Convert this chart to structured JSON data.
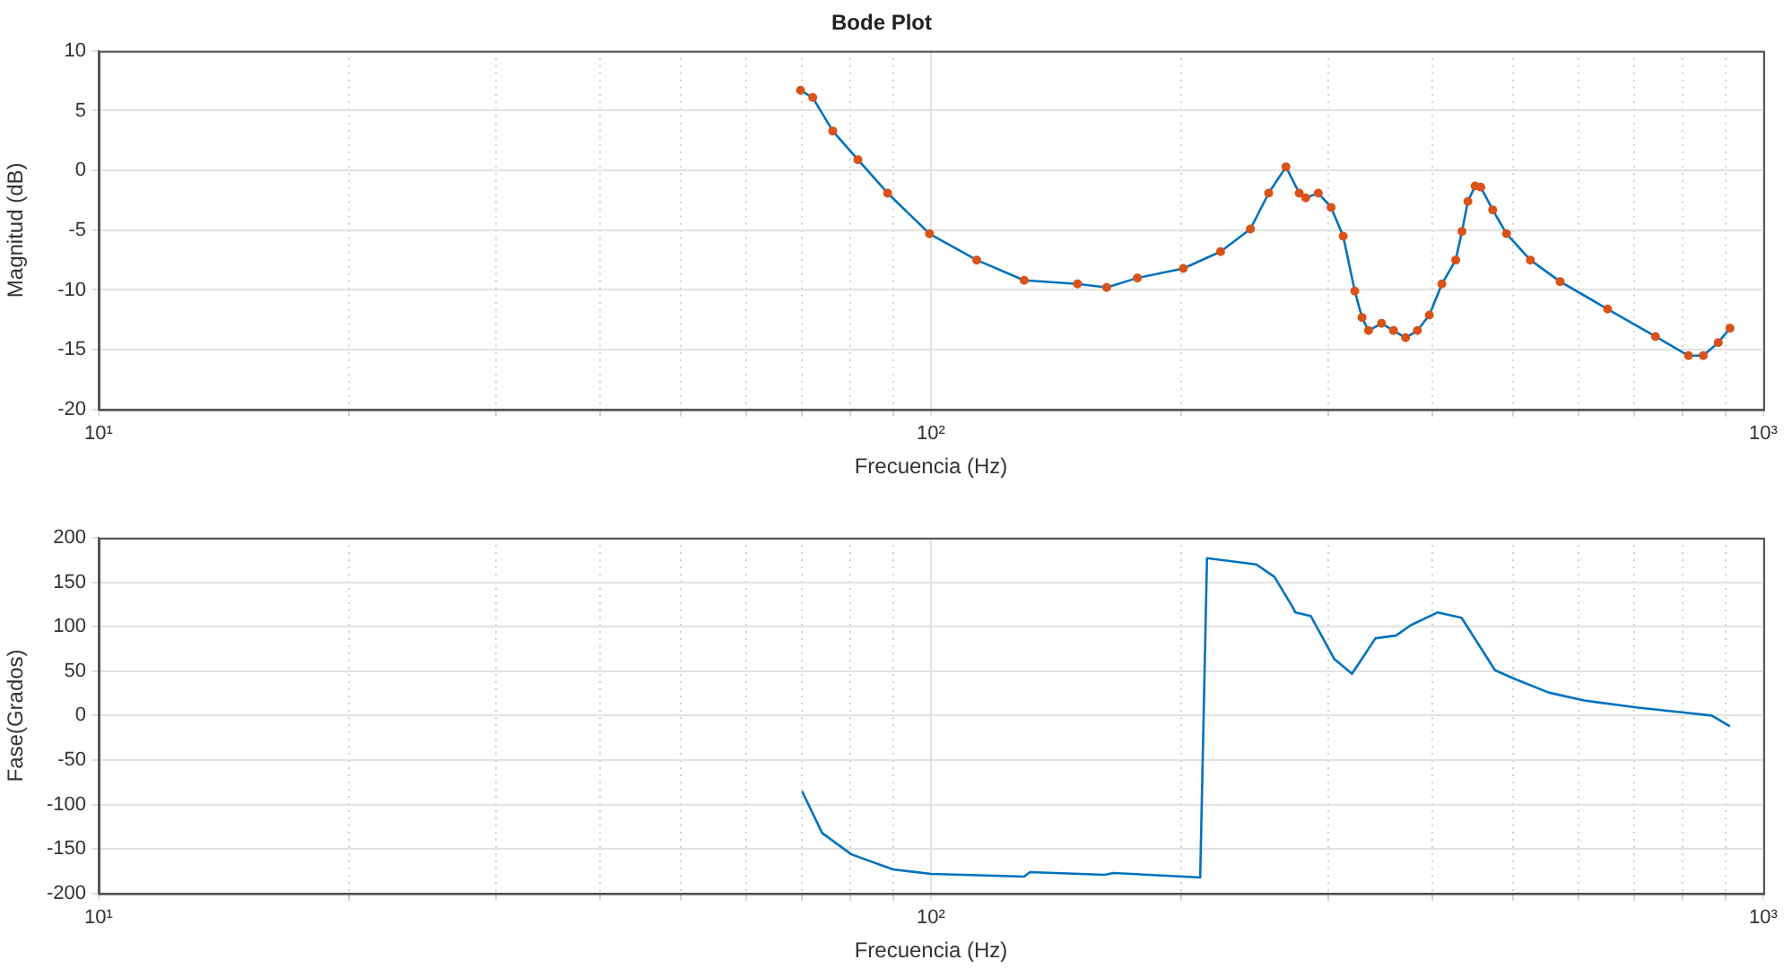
{
  "chart_data": [
    {
      "type": "line",
      "title": "Bode Plot",
      "xlabel": "Frecuencia (Hz)",
      "ylabel": "Magnitud (dB)",
      "log": "x",
      "grid": true,
      "xlim": [
        10,
        1000
      ],
      "xticks": [
        {
          "value": 10,
          "label": "10¹"
        },
        {
          "value": 20,
          "label": null
        },
        {
          "value": 30,
          "label": null
        },
        {
          "value": 40,
          "label": null
        },
        {
          "value": 50,
          "label": null
        },
        {
          "value": 60,
          "label": null
        },
        {
          "value": 70,
          "label": null
        },
        {
          "value": 80,
          "label": null
        },
        {
          "value": 90,
          "label": null
        },
        {
          "value": 100,
          "label": "10²"
        },
        {
          "value": 200,
          "label": null
        },
        {
          "value": 300,
          "label": null
        },
        {
          "value": 400,
          "label": null
        },
        {
          "value": 500,
          "label": null
        },
        {
          "value": 600,
          "label": null
        },
        {
          "value": 700,
          "label": null
        },
        {
          "value": 800,
          "label": null
        },
        {
          "value": 900,
          "label": null
        },
        {
          "value": 1000,
          "label": "10³"
        }
      ],
      "ylim": [
        -20,
        10
      ],
      "yticks": [
        -20,
        -15,
        -10,
        -5,
        0,
        5,
        10
      ],
      "x": [
        69.7,
        72.1,
        76.2,
        81.7,
        88.7,
        99.6,
        113.5,
        129.4,
        150,
        162.6,
        177,
        201,
        222.8,
        242,
        254.5,
        267,
        277,
        282,
        292,
        302.5,
        312.8,
        323,
        329.5,
        335.5,
        347.8,
        359.5,
        371.7,
        384,
        397,
        411,
        427,
        434.5,
        441.6,
        450.6,
        457.7,
        473,
        491.5,
        525,
        570,
        650,
        742,
        813,
        847,
        883,
        912
      ],
      "series": [
        {
          "color": "#0072bd",
          "marker": "none",
          "values": [
            6.7,
            6.1,
            3.3,
            0.9,
            -1.9,
            -5.3,
            -7.5,
            -9.2,
            -9.5,
            -9.8,
            -9.0,
            -8.2,
            -6.8,
            -4.9,
            -1.9,
            0.3,
            -1.9,
            -2.3,
            -1.9,
            -3.1,
            -5.5,
            -10.1,
            -12.3,
            -13.4,
            -12.8,
            -13.4,
            -14.0,
            -13.4,
            -12.1,
            -9.5,
            -7.5,
            -5.1,
            -2.6,
            -1.3,
            -1.4,
            -3.3,
            -5.3,
            -7.5,
            -9.3,
            -11.6,
            -13.9,
            -15.5,
            -15.5,
            -14.4,
            -13.2
          ]
        },
        {
          "type": "scatter",
          "color": "#d95319",
          "marker": "circle",
          "values": [
            6.7,
            6.1,
            3.3,
            0.9,
            -1.9,
            -5.3,
            -7.5,
            -9.2,
            -9.5,
            -9.8,
            -9.0,
            -8.2,
            -6.8,
            -4.9,
            -1.9,
            0.3,
            -1.9,
            -2.3,
            -1.9,
            -3.1,
            -5.5,
            -10.1,
            -12.3,
            -13.4,
            -12.8,
            -13.4,
            -14.0,
            -13.4,
            -12.1,
            -9.5,
            -7.5,
            -5.1,
            -2.6,
            -1.3,
            -1.4,
            -3.3,
            -5.3,
            -7.5,
            -9.3,
            -11.6,
            -13.9,
            -15.5,
            -15.5,
            -14.4,
            -13.2
          ]
        }
      ]
    },
    {
      "type": "line",
      "xlabel": "Frecuencia (Hz)",
      "ylabel": "Fase(Grados)",
      "log": "x",
      "grid": true,
      "xlim": [
        10,
        1000
      ],
      "xticks": [
        {
          "value": 10,
          "label": "10¹"
        },
        {
          "value": 20,
          "label": null
        },
        {
          "value": 30,
          "label": null
        },
        {
          "value": 40,
          "label": null
        },
        {
          "value": 50,
          "label": null
        },
        {
          "value": 60,
          "label": null
        },
        {
          "value": 70,
          "label": null
        },
        {
          "value": 80,
          "label": null
        },
        {
          "value": 90,
          "label": null
        },
        {
          "value": 100,
          "label": "10²"
        },
        {
          "value": 200,
          "label": null
        },
        {
          "value": 300,
          "label": null
        },
        {
          "value": 400,
          "label": null
        },
        {
          "value": 500,
          "label": null
        },
        {
          "value": 600,
          "label": null
        },
        {
          "value": 700,
          "label": null
        },
        {
          "value": 800,
          "label": null
        },
        {
          "value": 900,
          "label": null
        },
        {
          "value": 1000,
          "label": "10³"
        }
      ],
      "ylim": [
        -200,
        200
      ],
      "yticks": [
        -200,
        -150,
        -100,
        -50,
        0,
        50,
        100,
        150,
        200
      ],
      "x": [
        70,
        74,
        80.2,
        90,
        100,
        129.4,
        131.5,
        161.7,
        165.6,
        210.6,
        214.6,
        246,
        258.6,
        272,
        274,
        286,
        305,
        320.5,
        342,
        362,
        377.6,
        406,
        434,
        476,
        503.5,
        552,
        609,
        707,
        813,
        867,
        912
      ],
      "series": [
        {
          "color": "#0072bd",
          "values": [
            -85,
            -132,
            -156,
            -173,
            -178,
            -181,
            -176,
            -179,
            -177,
            -182,
            177,
            170,
            156,
            122,
            116,
            112,
            64,
            47,
            87,
            90,
            102,
            116,
            110,
            51,
            41,
            26,
            17,
            9,
            3,
            0,
            -12
          ]
        }
      ]
    }
  ]
}
